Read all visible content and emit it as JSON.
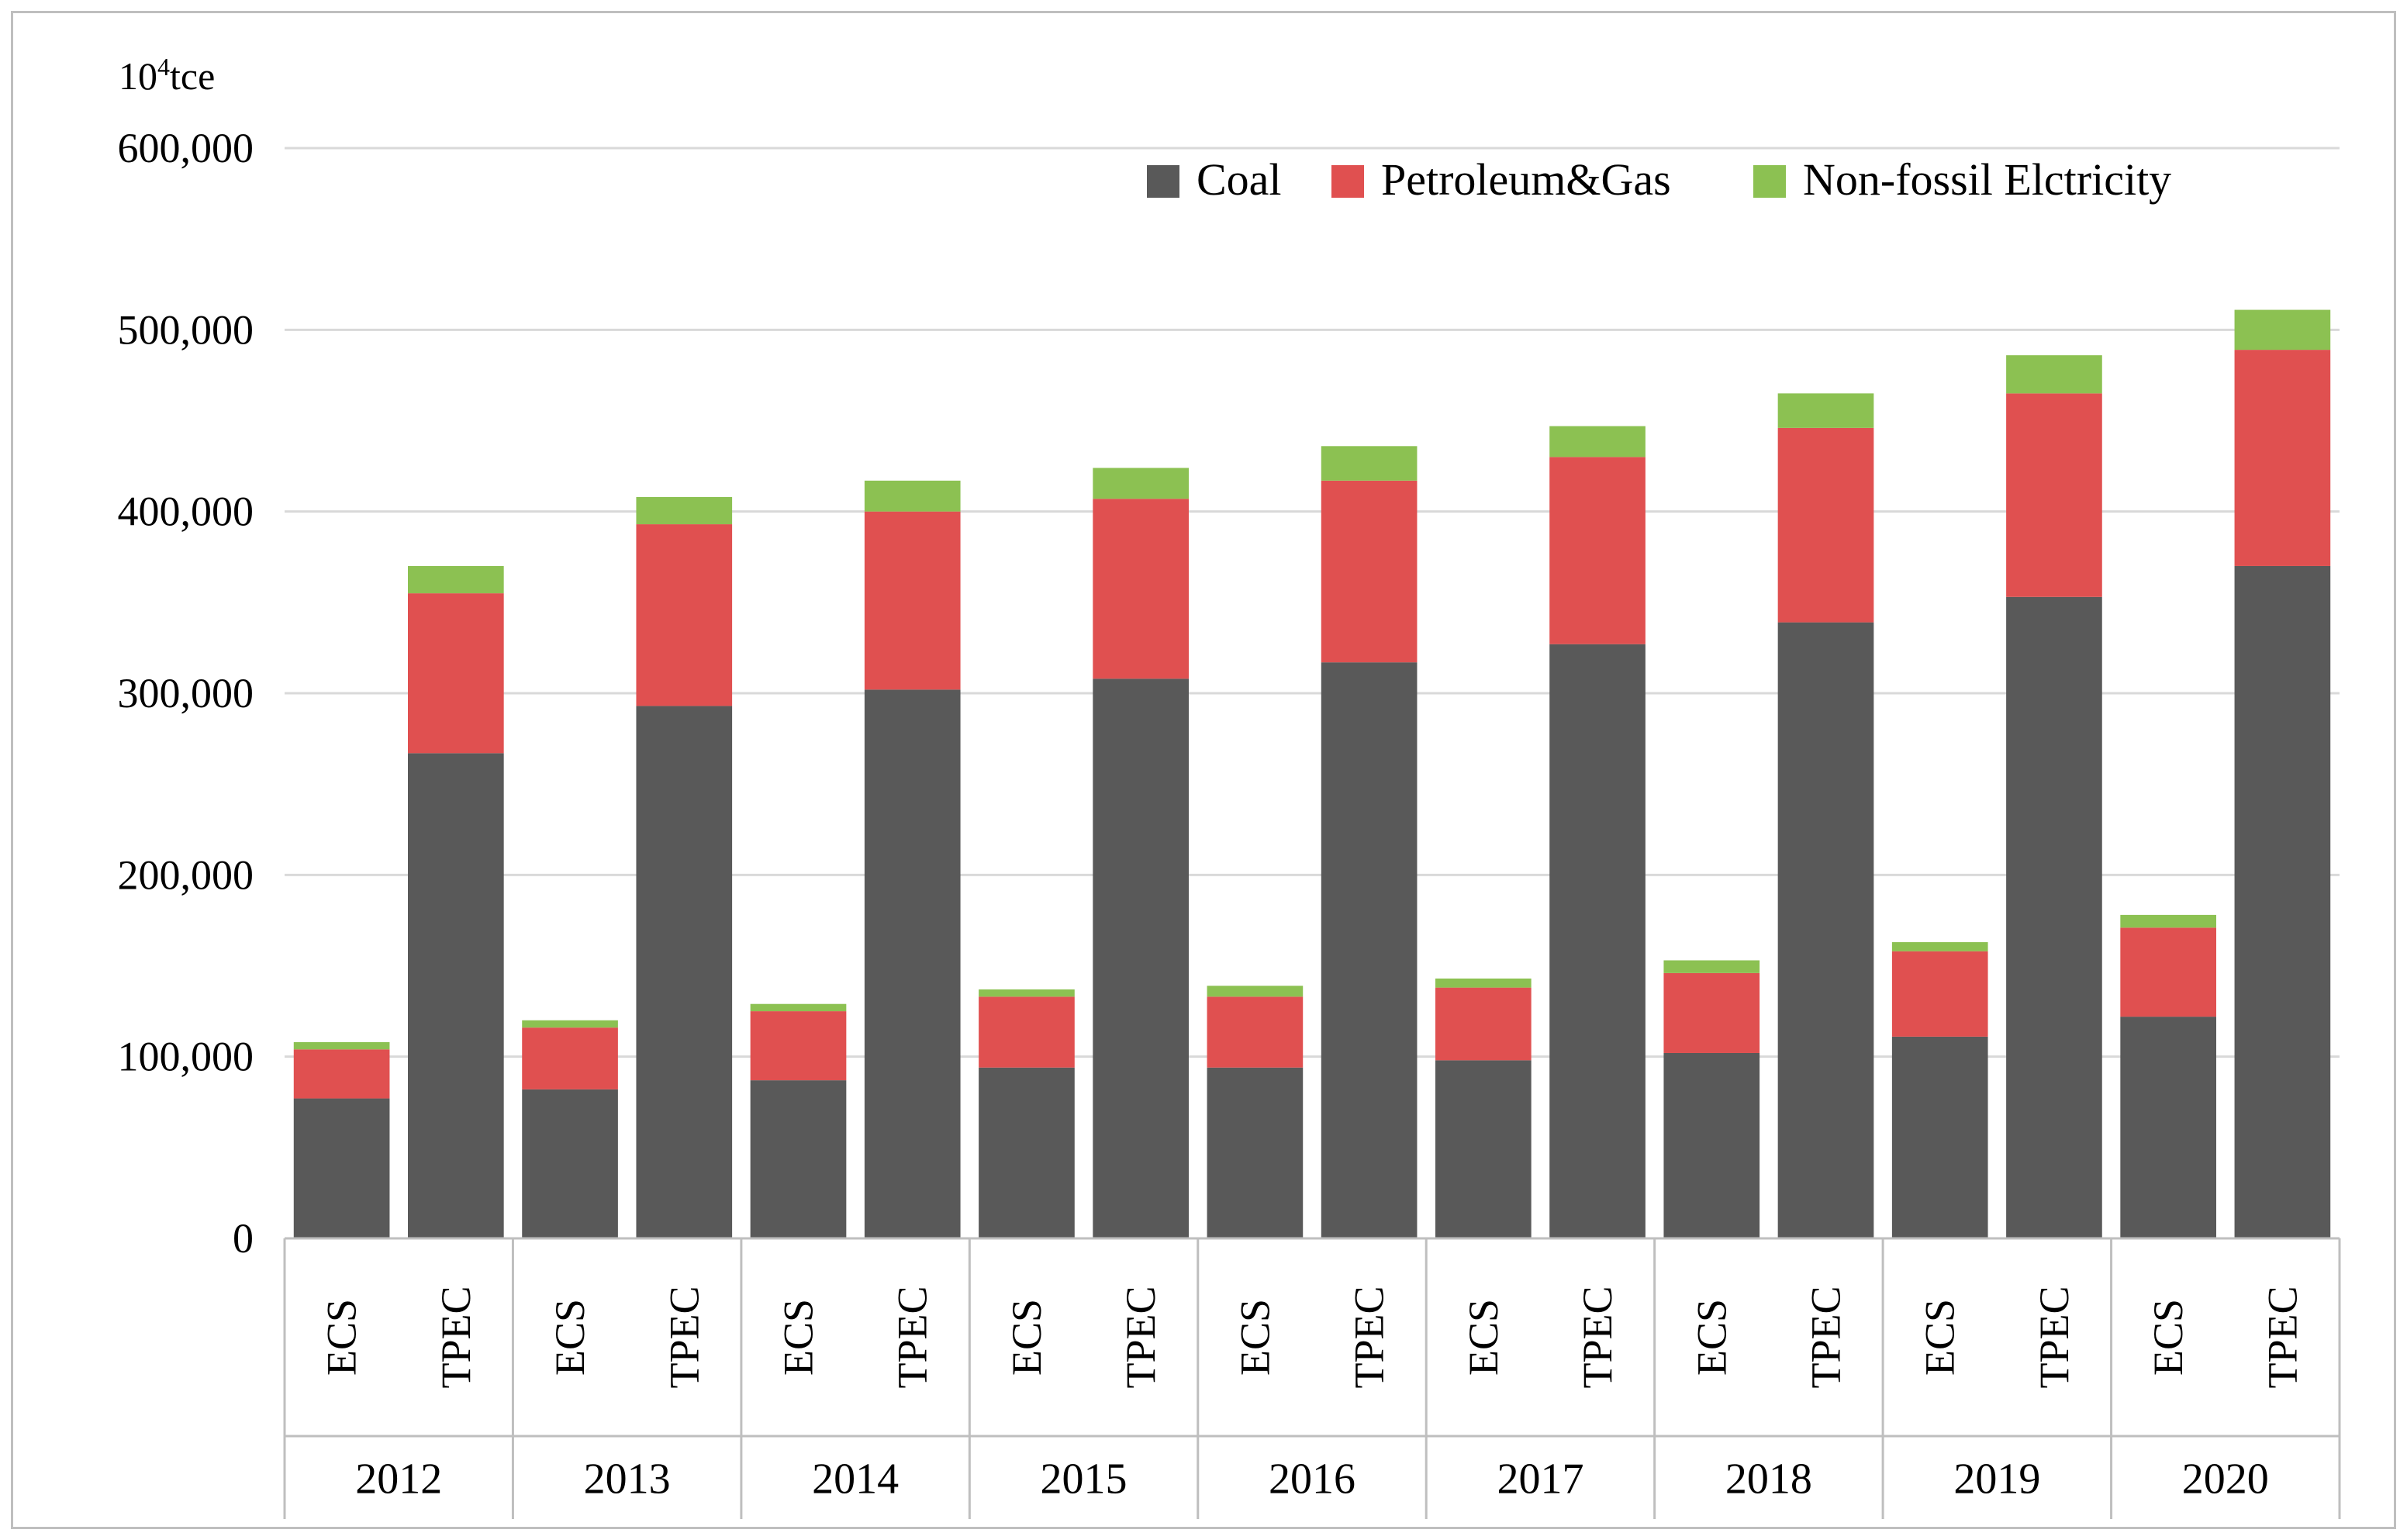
{
  "chart_data": {
    "type": "bar",
    "stacked": true,
    "unit_label_base": "10",
    "unit_label_exp": "4",
    "unit_label_suffix": "tce",
    "ylim": [
      0,
      600000
    ],
    "yticks": [
      "0",
      "100,000",
      "200,000",
      "300,000",
      "400,000",
      "500,000",
      "600,000"
    ],
    "ytick_values": [
      0,
      100000,
      200000,
      300000,
      400000,
      500000,
      600000
    ],
    "grid": true,
    "legend_position": "top-right",
    "groups": [
      "2012",
      "2013",
      "2014",
      "2015",
      "2016",
      "2017",
      "2018",
      "2019",
      "2020"
    ],
    "subcategories": [
      "ECS",
      "TPEC"
    ],
    "series": [
      {
        "name": "Coal",
        "color": "#595959",
        "values": [
          77000,
          267000,
          82000,
          293000,
          87000,
          302000,
          94000,
          308000,
          94000,
          317000,
          98000,
          327000,
          102000,
          339000,
          111000,
          353000,
          122000,
          370000
        ]
      },
      {
        "name": "Petroleum&Gas",
        "color": "#e05050",
        "values": [
          27000,
          88000,
          34000,
          100000,
          38000,
          98000,
          39000,
          99000,
          39000,
          100000,
          40000,
          103000,
          44000,
          107000,
          47000,
          112000,
          49000,
          119000
        ]
      },
      {
        "name": "Non-fossil Elctricity",
        "color": "#8cc152",
        "values": [
          4000,
          15000,
          4000,
          15000,
          4000,
          17000,
          4000,
          17000,
          6000,
          19000,
          5000,
          17000,
          7000,
          19000,
          5000,
          21000,
          7000,
          22000
        ]
      }
    ]
  }
}
